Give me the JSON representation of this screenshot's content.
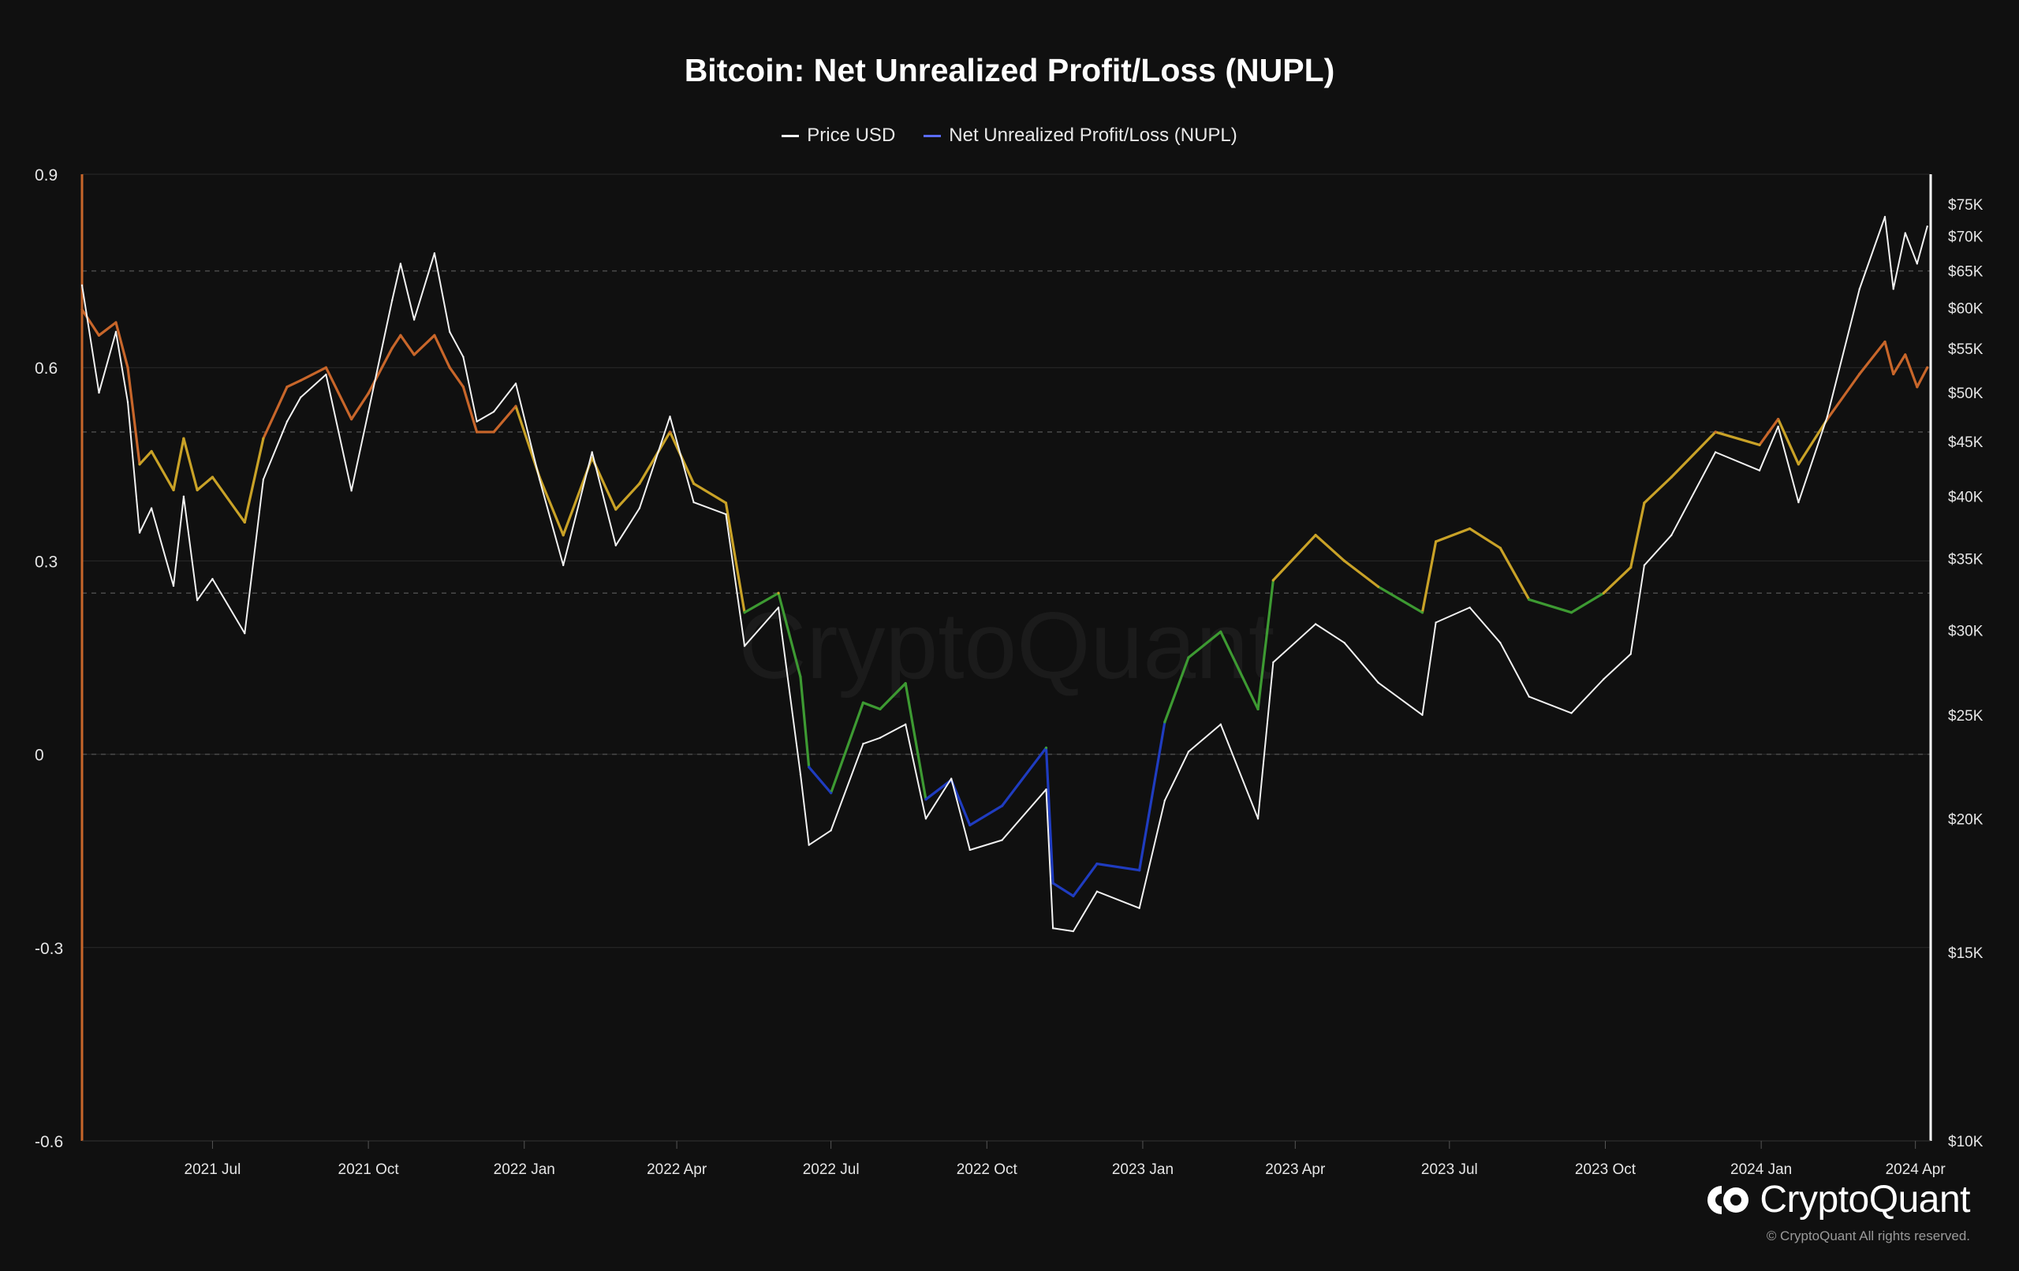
{
  "colors": {
    "background": "#101010",
    "grid": "#2a2a2a",
    "dashed": "#4a4a4a",
    "price": "#f2f2f2",
    "nupl_legend": "#5b6cff",
    "nupl_zones": {
      "capitulation": "#1f3cc0",
      "hope_fear": "#3d9a32",
      "optimism_anxiety": "#c9a227",
      "belief_denial": "#c8662a"
    },
    "left_axis_line": "#c8662a",
    "right_axis_line": "#ffffff"
  },
  "header": {
    "title": "Bitcoin: Net Unrealized Profit/Loss (NUPL)",
    "legend": [
      {
        "label": "Price USD",
        "color": "#f2f2f2"
      },
      {
        "label": "Net Unrealized Profit/Loss (NUPL)",
        "color": "#5b6cff"
      }
    ]
  },
  "watermark": "CryptoQuant",
  "brand": {
    "name": "CryptoQuant",
    "copyright": "© CryptoQuant All rights reserved.",
    "icon": "cryptoquant-logo-icon"
  },
  "chart_data": {
    "type": "line",
    "x_range": [
      "2021-04-15",
      "2024-04-10"
    ],
    "x_ticks": [
      {
        "date": "2021-07-01",
        "label": "2021 Jul"
      },
      {
        "date": "2021-10-01",
        "label": "2021 Oct"
      },
      {
        "date": "2022-01-01",
        "label": "2022 Jan"
      },
      {
        "date": "2022-04-01",
        "label": "2022 Apr"
      },
      {
        "date": "2022-07-01",
        "label": "2022 Jul"
      },
      {
        "date": "2022-10-01",
        "label": "2022 Oct"
      },
      {
        "date": "2023-01-01",
        "label": "2023 Jan"
      },
      {
        "date": "2023-04-01",
        "label": "2023 Apr"
      },
      {
        "date": "2023-07-01",
        "label": "2023 Jul"
      },
      {
        "date": "2023-10-01",
        "label": "2023 Oct"
      },
      {
        "date": "2024-01-01",
        "label": "2024 Jan"
      },
      {
        "date": "2024-04-01",
        "label": "2024 Apr"
      }
    ],
    "y_left": {
      "range": [
        -0.6,
        0.9
      ],
      "ticks": [
        0.9,
        0.6,
        0.3,
        0,
        -0.3,
        -0.6
      ],
      "tick_labels": [
        "0.9",
        "0.6",
        "0.3",
        "0",
        "-0.3",
        "-0.6"
      ],
      "dashed_levels": [
        0.75,
        0.5,
        0.25,
        0
      ]
    },
    "y_right": {
      "scale": "log",
      "range": [
        10000,
        80000
      ],
      "ticks": [
        75000,
        70000,
        65000,
        60000,
        55000,
        50000,
        45000,
        40000,
        35000,
        30000,
        25000,
        20000,
        15000,
        10000
      ],
      "tick_labels": [
        "$75K",
        "$70K",
        "$65K",
        "$60K",
        "$55K",
        "$50K",
        "$45K",
        "$40K",
        "$35K",
        "$30K",
        "$25K",
        "$20K",
        "$15K",
        "$10K"
      ]
    },
    "grid": true,
    "legend_position": "top-center",
    "series": [
      {
        "name": "Price USD",
        "axis": "right",
        "points": [
          [
            "2021-04-15",
            63000
          ],
          [
            "2021-04-25",
            50000
          ],
          [
            "2021-05-05",
            57000
          ],
          [
            "2021-05-12",
            49000
          ],
          [
            "2021-05-19",
            37000
          ],
          [
            "2021-05-26",
            39000
          ],
          [
            "2021-06-08",
            33000
          ],
          [
            "2021-06-14",
            40000
          ],
          [
            "2021-06-22",
            32000
          ],
          [
            "2021-07-01",
            33500
          ],
          [
            "2021-07-20",
            29800
          ],
          [
            "2021-07-31",
            41500
          ],
          [
            "2021-08-14",
            47000
          ],
          [
            "2021-08-22",
            49500
          ],
          [
            "2021-09-06",
            52000
          ],
          [
            "2021-09-21",
            40500
          ],
          [
            "2021-10-01",
            48000
          ],
          [
            "2021-10-15",
            61000
          ],
          [
            "2021-10-20",
            66000
          ],
          [
            "2021-10-28",
            58500
          ],
          [
            "2021-11-09",
            67500
          ],
          [
            "2021-11-18",
            57000
          ],
          [
            "2021-11-26",
            54000
          ],
          [
            "2021-12-04",
            47000
          ],
          [
            "2021-12-14",
            48000
          ],
          [
            "2021-12-27",
            51000
          ],
          [
            "2022-01-10",
            41500
          ],
          [
            "2022-01-24",
            34500
          ],
          [
            "2022-02-10",
            44000
          ],
          [
            "2022-02-24",
            36000
          ],
          [
            "2022-03-10",
            39000
          ],
          [
            "2022-03-28",
            47500
          ],
          [
            "2022-04-11",
            39500
          ],
          [
            "2022-04-30",
            38500
          ],
          [
            "2022-05-11",
            29000
          ],
          [
            "2022-05-31",
            31500
          ],
          [
            "2022-06-13",
            22000
          ],
          [
            "2022-06-18",
            18900
          ],
          [
            "2022-07-01",
            19500
          ],
          [
            "2022-07-20",
            23500
          ],
          [
            "2022-07-30",
            23800
          ],
          [
            "2022-08-14",
            24500
          ],
          [
            "2022-08-26",
            20000
          ],
          [
            "2022-09-10",
            21800
          ],
          [
            "2022-09-21",
            18700
          ],
          [
            "2022-10-10",
            19100
          ],
          [
            "2022-11-05",
            21300
          ],
          [
            "2022-11-09",
            15800
          ],
          [
            "2022-11-21",
            15700
          ],
          [
            "2022-12-05",
            17100
          ],
          [
            "2022-12-30",
            16500
          ],
          [
            "2023-01-14",
            20800
          ],
          [
            "2023-01-28",
            23100
          ],
          [
            "2023-02-16",
            24500
          ],
          [
            "2023-03-10",
            20000
          ],
          [
            "2023-03-19",
            28000
          ],
          [
            "2023-04-13",
            30400
          ],
          [
            "2023-04-30",
            29200
          ],
          [
            "2023-05-20",
            26800
          ],
          [
            "2023-06-15",
            25000
          ],
          [
            "2023-06-23",
            30500
          ],
          [
            "2023-07-13",
            31500
          ],
          [
            "2023-07-31",
            29200
          ],
          [
            "2023-08-17",
            26000
          ],
          [
            "2023-09-11",
            25100
          ],
          [
            "2023-09-30",
            27000
          ],
          [
            "2023-10-16",
            28500
          ],
          [
            "2023-10-24",
            34500
          ],
          [
            "2023-11-09",
            36800
          ],
          [
            "2023-12-05",
            44000
          ],
          [
            "2023-12-31",
            42300
          ],
          [
            "2024-01-11",
            46500
          ],
          [
            "2024-01-23",
            39500
          ],
          [
            "2024-02-09",
            47500
          ],
          [
            "2024-02-28",
            62500
          ],
          [
            "2024-03-14",
            73000
          ],
          [
            "2024-03-19",
            62500
          ],
          [
            "2024-03-26",
            70500
          ],
          [
            "2024-04-02",
            66000
          ],
          [
            "2024-04-08",
            71500
          ]
        ]
      },
      {
        "name": "Net Unrealized Profit/Loss (NUPL)",
        "axis": "left",
        "points": [
          [
            "2021-04-15",
            0.69
          ],
          [
            "2021-04-25",
            0.65
          ],
          [
            "2021-05-05",
            0.67
          ],
          [
            "2021-05-12",
            0.6
          ],
          [
            "2021-05-19",
            0.45
          ],
          [
            "2021-05-26",
            0.47
          ],
          [
            "2021-06-08",
            0.41
          ],
          [
            "2021-06-14",
            0.49
          ],
          [
            "2021-06-22",
            0.41
          ],
          [
            "2021-07-01",
            0.43
          ],
          [
            "2021-07-20",
            0.36
          ],
          [
            "2021-07-31",
            0.49
          ],
          [
            "2021-08-14",
            0.57
          ],
          [
            "2021-08-22",
            0.58
          ],
          [
            "2021-09-06",
            0.6
          ],
          [
            "2021-09-21",
            0.52
          ],
          [
            "2021-10-01",
            0.56
          ],
          [
            "2021-10-15",
            0.63
          ],
          [
            "2021-10-20",
            0.65
          ],
          [
            "2021-10-28",
            0.62
          ],
          [
            "2021-11-09",
            0.65
          ],
          [
            "2021-11-18",
            0.6
          ],
          [
            "2021-11-26",
            0.57
          ],
          [
            "2021-12-04",
            0.5
          ],
          [
            "2021-12-14",
            0.5
          ],
          [
            "2021-12-27",
            0.54
          ],
          [
            "2022-01-10",
            0.43
          ],
          [
            "2022-01-24",
            0.34
          ],
          [
            "2022-02-10",
            0.46
          ],
          [
            "2022-02-24",
            0.38
          ],
          [
            "2022-03-10",
            0.42
          ],
          [
            "2022-03-28",
            0.5
          ],
          [
            "2022-04-11",
            0.42
          ],
          [
            "2022-04-30",
            0.39
          ],
          [
            "2022-05-11",
            0.22
          ],
          [
            "2022-05-31",
            0.25
          ],
          [
            "2022-06-13",
            0.12
          ],
          [
            "2022-06-18",
            -0.02
          ],
          [
            "2022-07-01",
            -0.06
          ],
          [
            "2022-07-20",
            0.08
          ],
          [
            "2022-07-30",
            0.07
          ],
          [
            "2022-08-14",
            0.11
          ],
          [
            "2022-08-26",
            -0.07
          ],
          [
            "2022-09-10",
            -0.04
          ],
          [
            "2022-09-21",
            -0.11
          ],
          [
            "2022-10-10",
            -0.08
          ],
          [
            "2022-11-05",
            0.01
          ],
          [
            "2022-11-09",
            -0.2
          ],
          [
            "2022-11-21",
            -0.22
          ],
          [
            "2022-12-05",
            -0.17
          ],
          [
            "2022-12-30",
            -0.18
          ],
          [
            "2023-01-14",
            0.05
          ],
          [
            "2023-01-28",
            0.15
          ],
          [
            "2023-02-16",
            0.19
          ],
          [
            "2023-03-10",
            0.07
          ],
          [
            "2023-03-19",
            0.27
          ],
          [
            "2023-04-13",
            0.34
          ],
          [
            "2023-04-30",
            0.3
          ],
          [
            "2023-05-20",
            0.26
          ],
          [
            "2023-06-15",
            0.22
          ],
          [
            "2023-06-23",
            0.33
          ],
          [
            "2023-07-13",
            0.35
          ],
          [
            "2023-07-31",
            0.32
          ],
          [
            "2023-08-17",
            0.24
          ],
          [
            "2023-09-11",
            0.22
          ],
          [
            "2023-09-30",
            0.25
          ],
          [
            "2023-10-16",
            0.29
          ],
          [
            "2023-10-24",
            0.39
          ],
          [
            "2023-11-09",
            0.43
          ],
          [
            "2023-12-05",
            0.5
          ],
          [
            "2023-12-31",
            0.48
          ],
          [
            "2024-01-11",
            0.52
          ],
          [
            "2024-01-23",
            0.45
          ],
          [
            "2024-02-09",
            0.52
          ],
          [
            "2024-02-28",
            0.59
          ],
          [
            "2024-03-14",
            0.64
          ],
          [
            "2024-03-19",
            0.59
          ],
          [
            "2024-03-26",
            0.62
          ],
          [
            "2024-04-02",
            0.57
          ],
          [
            "2024-04-08",
            0.6
          ]
        ]
      }
    ]
  }
}
